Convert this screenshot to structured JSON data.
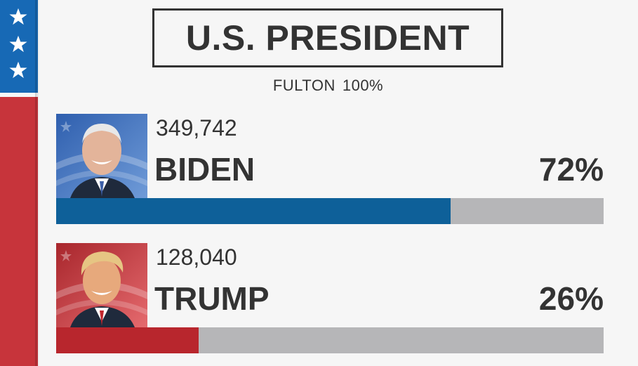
{
  "header": {
    "title": "U.S. PRESIDENT",
    "county": "FULTON",
    "reporting": "100%"
  },
  "sidebar": {
    "stars": 3,
    "blue_color": "#1769b5",
    "red_color": "#c7343b"
  },
  "candidates": [
    {
      "name": "BIDEN",
      "votes": "349,742",
      "percent_label": "72%",
      "share": 0.72,
      "bar_color": "#0e6099",
      "photo": "biden-photo"
    },
    {
      "name": "TRUMP",
      "votes": "128,040",
      "percent_label": "26%",
      "share": 0.26,
      "bar_color": "#b8262d",
      "photo": "trump-photo"
    }
  ]
}
